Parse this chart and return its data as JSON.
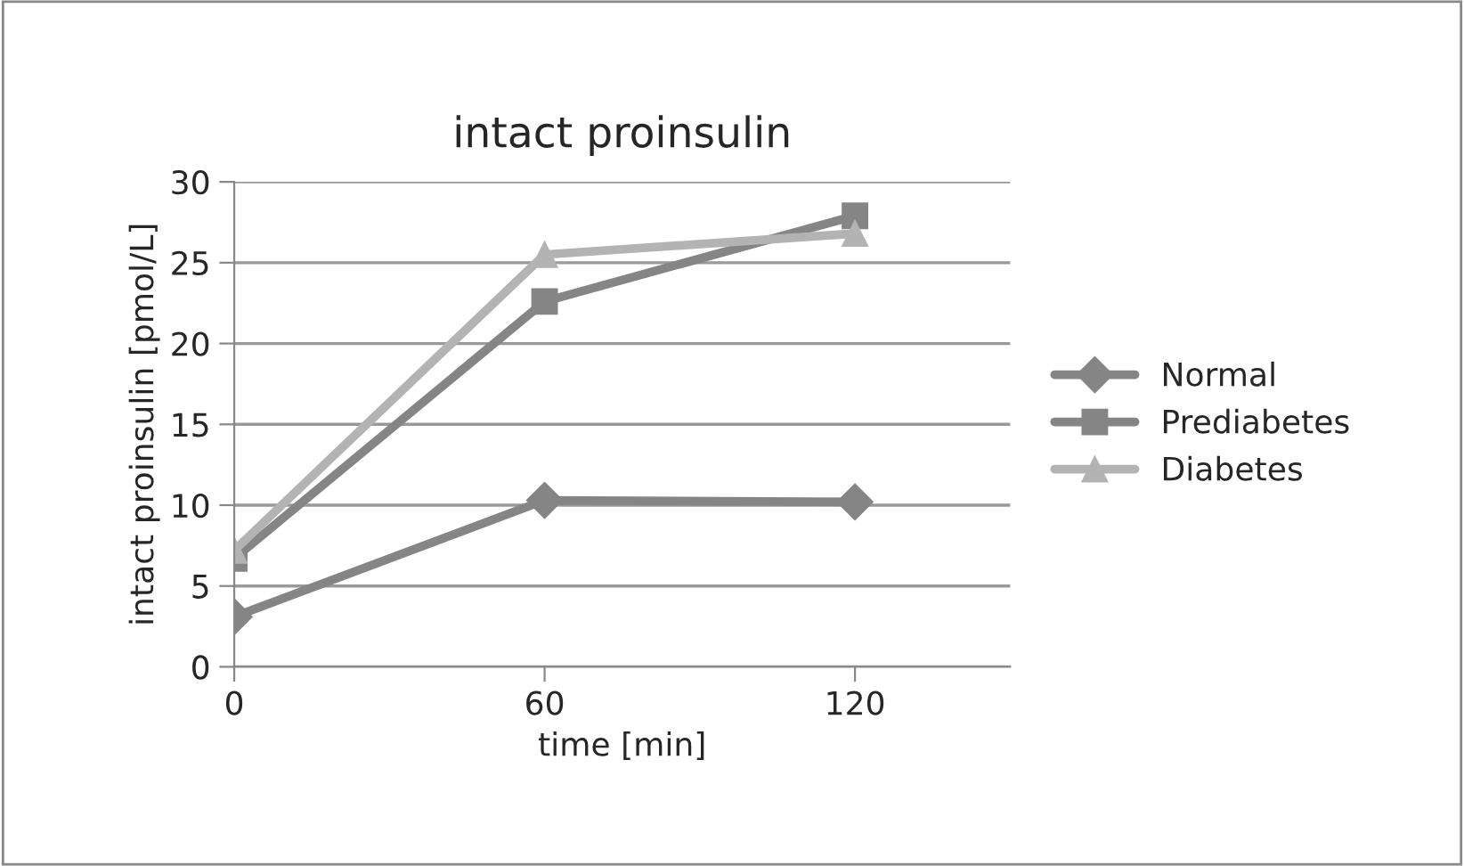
{
  "chart_data": {
    "type": "line",
    "title": "intact proinsulin",
    "xlabel": "time [min]",
    "ylabel": "intact proinsulin [pmol/L]",
    "x": [
      0,
      60,
      120
    ],
    "series": [
      {
        "name": "Normal",
        "color": "#858585",
        "marker": "diamond",
        "values": [
          3.1,
          10.3,
          10.2
        ]
      },
      {
        "name": "Prediabetes",
        "color": "#858585",
        "marker": "square",
        "values": [
          6.7,
          22.6,
          27.9
        ]
      },
      {
        "name": "Diabetes",
        "color": "#b3b3b3",
        "marker": "triangle",
        "values": [
          7.2,
          25.5,
          26.8
        ]
      }
    ],
    "xlim": [
      0,
      150
    ],
    "xticks": [
      0,
      60,
      120
    ],
    "ylim": [
      0,
      30
    ],
    "yticks": [
      0,
      5,
      10,
      15,
      20,
      25,
      30
    ],
    "grid": "y",
    "legend": "right",
    "line_style": "solid"
  }
}
